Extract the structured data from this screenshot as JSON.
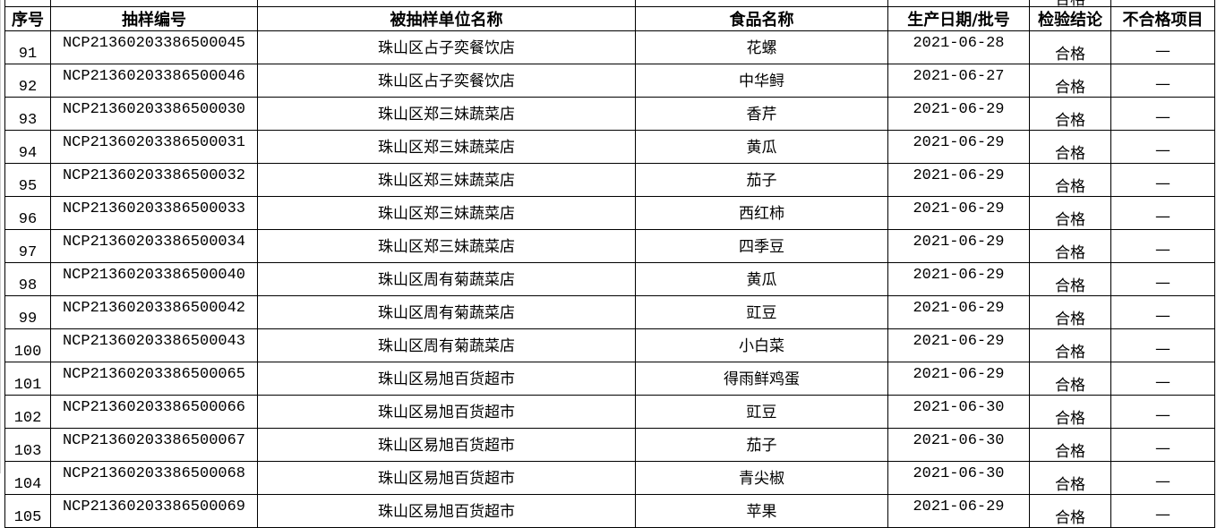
{
  "headers": [
    "序号",
    "抽样编号",
    "被抽样单位名称",
    "食品名称",
    "生产日期/批号",
    "检验结论",
    "不合格项目"
  ],
  "top_partial_result": "合格",
  "rows": [
    {
      "no": "91",
      "code": "NCP21360203386500045",
      "unit": "珠山区占子奕餐饮店",
      "food": "花螺",
      "date": "2021-06-28",
      "result": "合格",
      "fail": "—"
    },
    {
      "no": "92",
      "code": "NCP21360203386500046",
      "unit": "珠山区占子奕餐饮店",
      "food": "中华鲟",
      "date": "2021-06-27",
      "result": "合格",
      "fail": "—"
    },
    {
      "no": "93",
      "code": "NCP21360203386500030",
      "unit": "珠山区郑三妹蔬菜店",
      "food": "香芹",
      "date": "2021-06-29",
      "result": "合格",
      "fail": "—"
    },
    {
      "no": "94",
      "code": "NCP21360203386500031",
      "unit": "珠山区郑三妹蔬菜店",
      "food": "黄瓜",
      "date": "2021-06-29",
      "result": "合格",
      "fail": "—"
    },
    {
      "no": "95",
      "code": "NCP21360203386500032",
      "unit": "珠山区郑三妹蔬菜店",
      "food": "茄子",
      "date": "2021-06-29",
      "result": "合格",
      "fail": "—"
    },
    {
      "no": "96",
      "code": "NCP21360203386500033",
      "unit": "珠山区郑三妹蔬菜店",
      "food": "西红柿",
      "date": "2021-06-29",
      "result": "合格",
      "fail": "—"
    },
    {
      "no": "97",
      "code": "NCP21360203386500034",
      "unit": "珠山区郑三妹蔬菜店",
      "food": "四季豆",
      "date": "2021-06-29",
      "result": "合格",
      "fail": "—"
    },
    {
      "no": "98",
      "code": "NCP21360203386500040",
      "unit": "珠山区周有菊蔬菜店",
      "food": "黄瓜",
      "date": "2021-06-29",
      "result": "合格",
      "fail": "—"
    },
    {
      "no": "99",
      "code": "NCP21360203386500042",
      "unit": "珠山区周有菊蔬菜店",
      "food": "豇豆",
      "date": "2021-06-29",
      "result": "合格",
      "fail": "—"
    },
    {
      "no": "100",
      "code": "NCP21360203386500043",
      "unit": "珠山区周有菊蔬菜店",
      "food": "小白菜",
      "date": "2021-06-29",
      "result": "合格",
      "fail": "—"
    },
    {
      "no": "101",
      "code": "NCP21360203386500065",
      "unit": "珠山区易旭百货超市",
      "food": "得雨鲜鸡蛋",
      "date": "2021-06-29",
      "result": "合格",
      "fail": "—"
    },
    {
      "no": "102",
      "code": "NCP21360203386500066",
      "unit": "珠山区易旭百货超市",
      "food": "豇豆",
      "date": "2021-06-30",
      "result": "合格",
      "fail": "—"
    },
    {
      "no": "103",
      "code": "NCP21360203386500067",
      "unit": "珠山区易旭百货超市",
      "food": "茄子",
      "date": "2021-06-30",
      "result": "合格",
      "fail": "—"
    },
    {
      "no": "104",
      "code": "NCP21360203386500068",
      "unit": "珠山区易旭百货超市",
      "food": "青尖椒",
      "date": "2021-06-30",
      "result": "合格",
      "fail": "—"
    },
    {
      "no": "105",
      "code": "NCP21360203386500069",
      "unit": "珠山区易旭百货超市",
      "food": "苹果",
      "date": "2021-06-29",
      "result": "合格",
      "fail": "—"
    }
  ]
}
